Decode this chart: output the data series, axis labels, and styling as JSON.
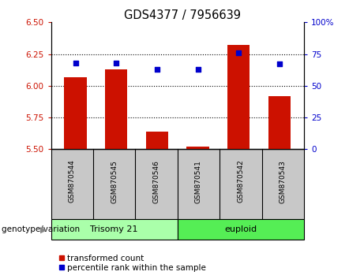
{
  "title": "GDS4377 / 7956639",
  "samples": [
    "GSM870544",
    "GSM870545",
    "GSM870546",
    "GSM870541",
    "GSM870542",
    "GSM870543"
  ],
  "transformed_counts": [
    6.07,
    6.13,
    5.64,
    5.52,
    6.32,
    5.92
  ],
  "percentile_ranks": [
    68,
    68,
    63,
    63,
    76,
    67
  ],
  "bar_baseline": 5.5,
  "ylim_left": [
    5.5,
    6.5
  ],
  "ylim_right": [
    0,
    100
  ],
  "yticks_left": [
    5.5,
    5.75,
    6.0,
    6.25,
    6.5
  ],
  "yticks_right": [
    0,
    25,
    50,
    75,
    100
  ],
  "ytick_labels_right": [
    "0",
    "25",
    "50",
    "75",
    "100%"
  ],
  "bar_color": "#cc1100",
  "dot_color": "#0000cc",
  "grid_lines": [
    5.75,
    6.0,
    6.25
  ],
  "group1_label": "Trisomy 21",
  "group2_label": "euploid",
  "group1_color": "#aaffaa",
  "group2_color": "#55ee55",
  "sample_label_bg": "#c8c8c8",
  "legend_labels": [
    "transformed count",
    "percentile rank within the sample"
  ],
  "genotype_label": "genotype/variation"
}
